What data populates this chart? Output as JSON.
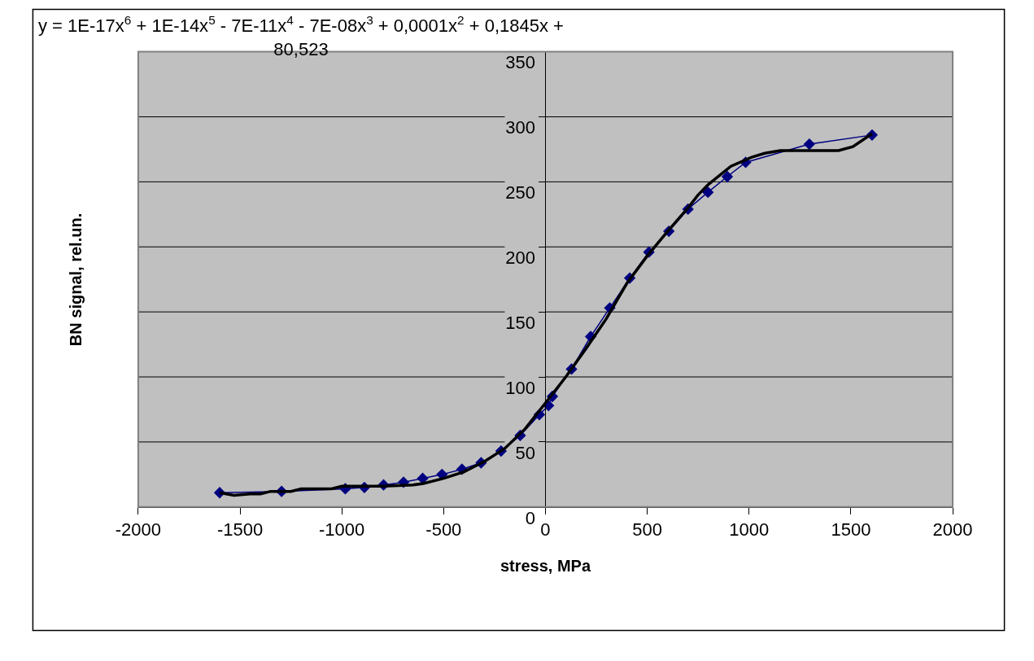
{
  "chart_data": {
    "type": "line",
    "xlabel": "stress, MPa",
    "ylabel": "BN signal, rel.un.",
    "annotations": [
      "y = 1E-17x$^{6}$ + 1E-14x$^{5}$ - 7E-11x$^{4}$ - 7E-08x$^{3}$ + 0,0001x$^{2}$ + 0,1845x +\n80,523"
    ],
    "xlim": [
      -2000,
      2000
    ],
    "xticks": [
      -2000,
      -1500,
      -1000,
      -500,
      0,
      500,
      1000,
      1500,
      2000
    ],
    "ylim": [
      0,
      350
    ],
    "yticks": [
      0,
      50,
      100,
      150,
      200,
      250,
      300,
      350
    ],
    "grid": "y",
    "series": [
      {
        "color": "#000080",
        "marker": "diamond",
        "line_style": "solid",
        "x": [
          -1600,
          -1296,
          -983,
          -889,
          -795,
          -697,
          -603,
          -508,
          -410,
          -316,
          -218,
          -124,
          -30,
          15,
          34,
          128,
          222,
          316,
          414,
          508,
          606,
          700,
          798,
          893,
          983,
          1296,
          1604
        ],
        "values": [
          11,
          12,
          14,
          15,
          17,
          19,
          22,
          25,
          29,
          34,
          43,
          55,
          71,
          78,
          85,
          106,
          131,
          153,
          176,
          196,
          212,
          229,
          242,
          254,
          265,
          279,
          286
        ]
      },
      {
        "color": "#000000",
        "marker": "none",
        "line_style": "solid",
        "x": [
          -1600,
          -1530,
          -1450,
          -1400,
          -1350,
          -1250,
          -1200,
          -1050,
          -1000,
          -800,
          -650,
          -600,
          -500,
          -400,
          -350,
          -300,
          -200,
          -100,
          0,
          100,
          200,
          300,
          400,
          500,
          600,
          700,
          750,
          800,
          911,
          1013,
          1077,
          1153,
          1439,
          1510,
          1604
        ],
        "values": [
          11,
          9,
          10,
          10,
          12,
          12,
          14,
          14,
          16,
          16,
          17,
          18,
          22,
          27,
          31,
          35,
          45,
          60,
          80,
          100,
          122,
          145,
          172,
          193,
          212,
          230,
          240,
          248,
          262,
          269,
          272,
          274,
          274,
          277,
          287
        ]
      }
    ]
  }
}
